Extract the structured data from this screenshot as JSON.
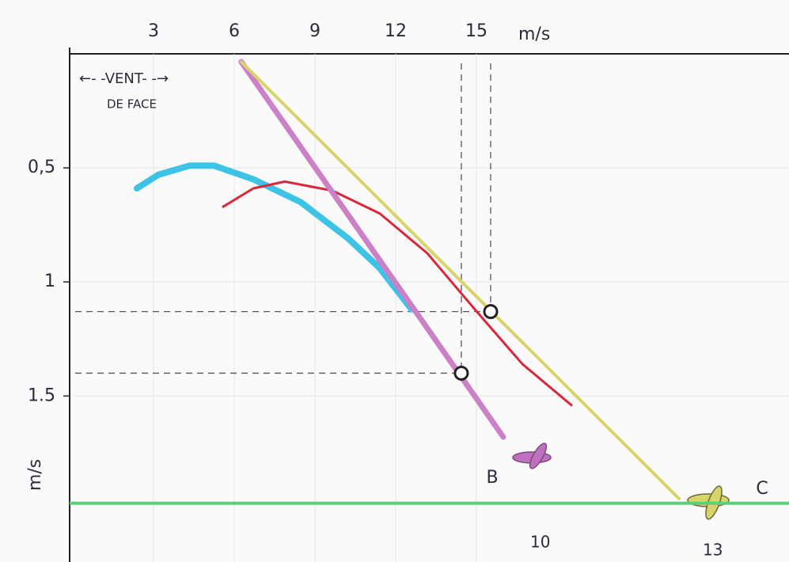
{
  "chart_data": {
    "type": "line",
    "x_label": "m/s",
    "y_label": "m/s",
    "xlim": [
      0,
      26.5
    ],
    "ylim": [
      0,
      2.2
    ],
    "xticks": [
      3,
      6,
      9,
      12,
      15
    ],
    "yticks": [
      {
        "value": 0.5,
        "label": "0,5"
      },
      1,
      {
        "value": 1.5,
        "label": "1.5"
      }
    ],
    "grid": true,
    "y_inverted": true,
    "series": [
      {
        "color": "#3cc3e6",
        "x": [
          2.38,
          3.18,
          4.35,
          5.24,
          6.71,
          8.47,
          10.24,
          11.41,
          12.59
        ],
        "values": [
          0.59,
          0.53,
          0.49,
          0.49,
          0.55,
          0.65,
          0.81,
          0.94,
          1.12
        ]
      },
      {
        "color": "#d8283c",
        "x": [
          5.59,
          6.71,
          7.88,
          9.65,
          11.41,
          13.18,
          14.94,
          16.71,
          18.53
        ],
        "values": [
          0.67,
          0.59,
          0.56,
          0.6,
          0.7,
          0.875,
          1.12,
          1.36,
          1.54
        ]
      },
      {
        "name": "B",
        "color": "#cc80c8",
        "x": [
          6.26,
          16.0
        ],
        "values": [
          0.035,
          1.68
        ]
      },
      {
        "name": "C",
        "color": "#d8d46a",
        "x": [
          6.26,
          22.53
        ],
        "values": [
          0.035,
          1.95
        ]
      }
    ],
    "markers": {
      "x": [
        14.44,
        15.53
      ],
      "values": [
        1.4,
        1.13
      ]
    },
    "ground": {
      "value": 1.97,
      "color": "#5ccf7a"
    },
    "annotations": [
      "←- -VENT- -→",
      "DE FACE",
      "10",
      "13"
    ]
  }
}
